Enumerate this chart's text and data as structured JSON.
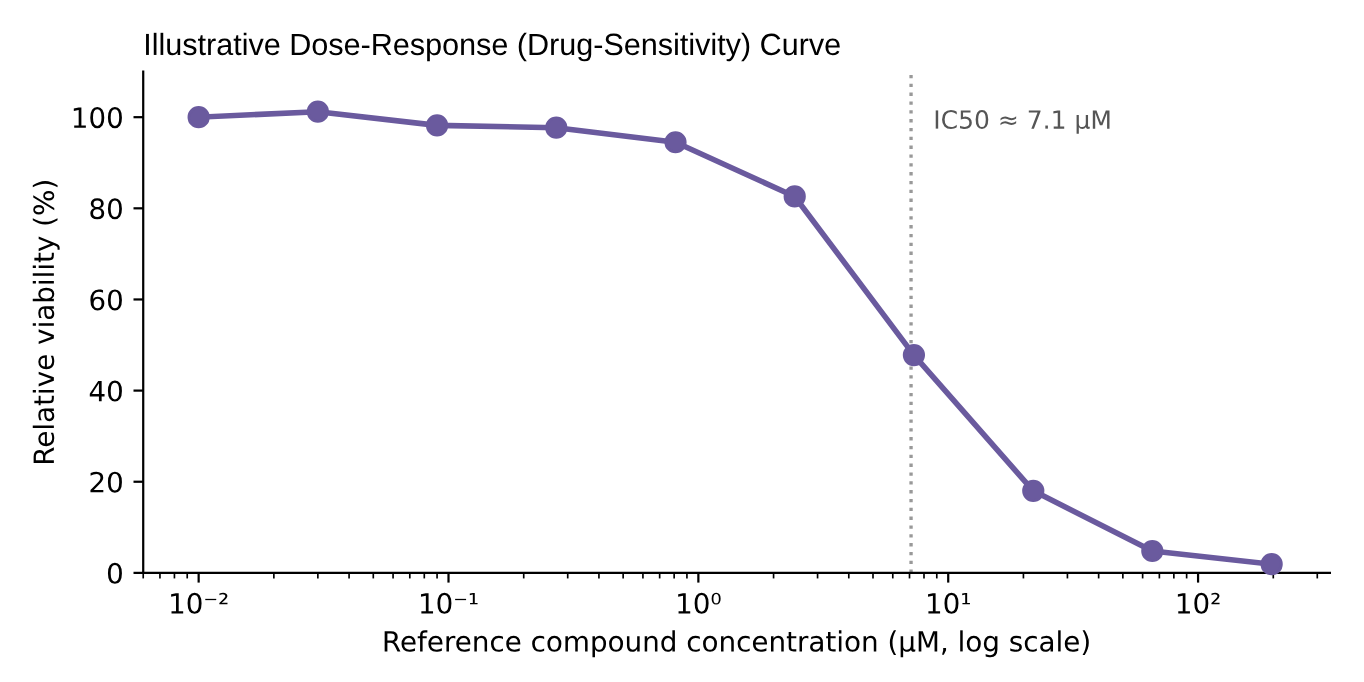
{
  "chart_data": {
    "type": "line",
    "title": "Illustrative Dose-Response (Drug-Sensitivity) Curve",
    "xlabel": "Reference compound concentration (µM, log scale)",
    "ylabel": "Relative viability (%)",
    "x": [
      0.01,
      0.03,
      0.09,
      0.27,
      0.81,
      2.43,
      7.29,
      21.9,
      65.6,
      197
    ],
    "series": [
      {
        "color": "#6a5a9e",
        "values": [
          100,
          101.2,
          98.2,
          97.7,
          94.5,
          82.6,
          47.8,
          18,
          4.8,
          1.9
        ]
      }
    ],
    "log": "x",
    "xlim": [
      0.006,
      337
    ],
    "ylim": [
      0,
      110
    ],
    "xticks": [
      {
        "value": 0.01,
        "label": "10⁻²"
      },
      {
        "value": 0.1,
        "label": "10⁻¹"
      },
      {
        "value": 1,
        "label": "10⁰"
      },
      {
        "value": 10,
        "label": "10¹"
      },
      {
        "value": 100,
        "label": "10²"
      }
    ],
    "yticks": [
      0,
      20,
      40,
      60,
      80,
      100
    ],
    "ref_lines": [
      {
        "axis": "x",
        "value": 7.1,
        "label": "IC50 ≈ 7.1 µM",
        "color": "#999999",
        "line_style": "dotted"
      }
    ],
    "marker": "circle",
    "line_style": "solid",
    "grid": false,
    "legend": false
  }
}
